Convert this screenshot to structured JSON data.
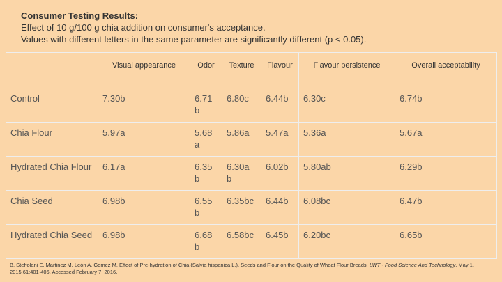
{
  "header": {
    "title": "Consumer Testing Results:",
    "lines": [
      "Effect of 10 g/100 g chia addition on consumer's acceptance.",
      "Values with different letters in the same parameter are significantly different (p < 0.05)."
    ]
  },
  "table": {
    "columns": [
      "Visual appearance",
      "Odor",
      "Texture",
      "Flavour",
      "Flavour persistence",
      "Overall acceptability"
    ],
    "rows": [
      [
        "Control",
        "7.30b",
        "6.71 b",
        "6.80c",
        "6.44b",
        "6.30c",
        "6.74b"
      ],
      [
        "Chia Flour",
        "5.97a",
        "5.68 a",
        "5.86a",
        "5.47a",
        "5.36a",
        "5.67a"
      ],
      [
        "Hydrated Chia Flour",
        "6.17a",
        "6.35 b",
        "6.30a b",
        "6.02b",
        "5.80ab",
        "6.29b"
      ],
      [
        "Chia Seed",
        "6.98b",
        "6.55 b",
        "6.35bc",
        "6.44b",
        "6.08bc",
        "6.47b"
      ],
      [
        "Hydrated Chia Seed",
        "6.98b",
        "6.68 b",
        "6.58bc",
        "6.45b",
        "6.20bc",
        "6.65b"
      ]
    ]
  },
  "citation": {
    "authors": "B. Steffolani E, Martinez M, León A, Gomez M. Effect of Pre-hydration of Chia (Salvia hispanica L.), Seeds and Flour on the Quality of Wheat Flour Breads.",
    "journal": "LWT - Food Science And Technology",
    "details": ". May 1, 2015;61:401-406. Accessed February 7, 2016."
  }
}
